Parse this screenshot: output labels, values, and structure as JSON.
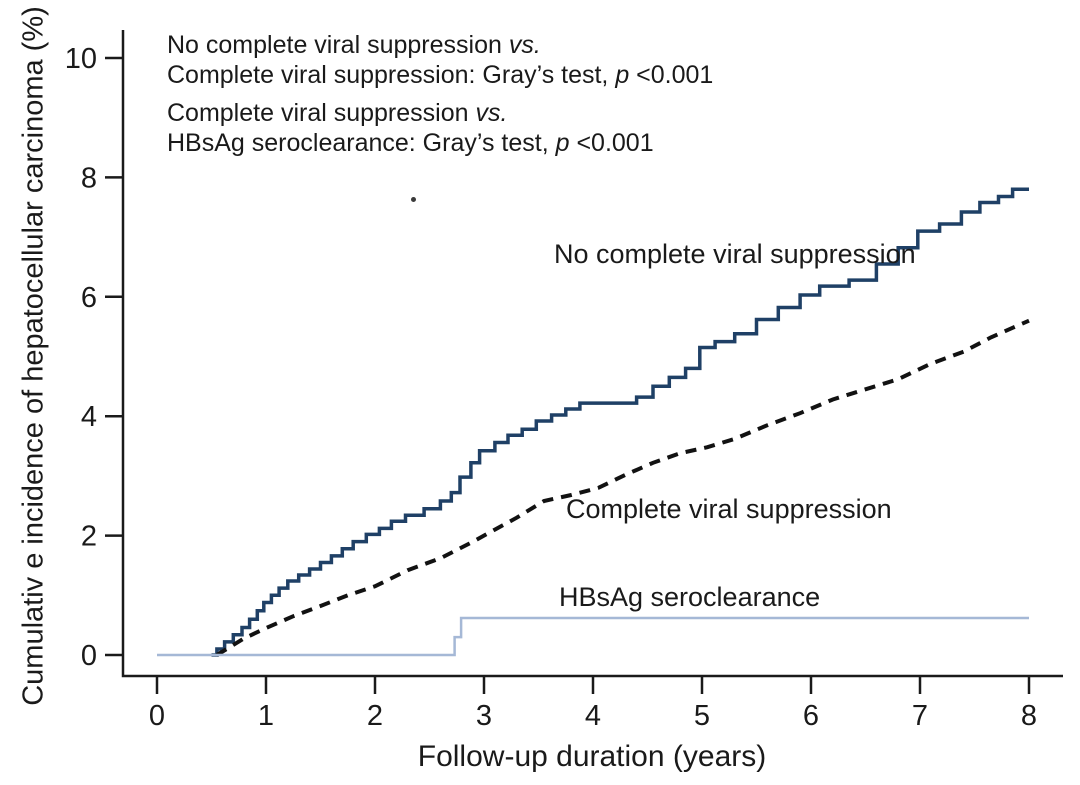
{
  "chart_data": {
    "type": "line",
    "subtype": "cumulative-incidence-step-curves",
    "title": "",
    "xlabel": "Follow-up duration (years)",
    "ylabel": "Cumulativ e incidence of hepatocellular carcinoma (%)",
    "xlim": [
      0,
      8
    ],
    "ylim": [
      0,
      10
    ],
    "xticks": [
      0,
      1,
      2,
      3,
      4,
      5,
      6,
      7,
      8
    ],
    "yticks": [
      0,
      2,
      4,
      6,
      8,
      10
    ],
    "grid": false,
    "legend_position": "inline-curve-labels",
    "axis_color": "#1a1a1a",
    "series": [
      {
        "name": "No complete viral suppression",
        "style": "solid-step",
        "color": "#1f4066",
        "width": 3.5,
        "points": [
          [
            0.5,
            0.0
          ],
          [
            0.55,
            0.1
          ],
          [
            0.62,
            0.22
          ],
          [
            0.7,
            0.34
          ],
          [
            0.78,
            0.46
          ],
          [
            0.85,
            0.6
          ],
          [
            0.92,
            0.74
          ],
          [
            0.98,
            0.88
          ],
          [
            1.05,
            1.0
          ],
          [
            1.12,
            1.12
          ],
          [
            1.2,
            1.24
          ],
          [
            1.3,
            1.34
          ],
          [
            1.4,
            1.44
          ],
          [
            1.5,
            1.55
          ],
          [
            1.6,
            1.66
          ],
          [
            1.7,
            1.78
          ],
          [
            1.8,
            1.9
          ],
          [
            1.92,
            2.02
          ],
          [
            2.04,
            2.12
          ],
          [
            2.15,
            2.24
          ],
          [
            2.28,
            2.34
          ],
          [
            2.45,
            2.45
          ],
          [
            2.6,
            2.58
          ],
          [
            2.7,
            2.72
          ],
          [
            2.78,
            2.98
          ],
          [
            2.88,
            3.22
          ],
          [
            2.96,
            3.42
          ],
          [
            3.1,
            3.56
          ],
          [
            3.22,
            3.68
          ],
          [
            3.35,
            3.78
          ],
          [
            3.48,
            3.92
          ],
          [
            3.62,
            4.02
          ],
          [
            3.75,
            4.12
          ],
          [
            3.88,
            4.22
          ],
          [
            4.4,
            4.32
          ],
          [
            4.55,
            4.5
          ],
          [
            4.7,
            4.65
          ],
          [
            4.85,
            4.8
          ],
          [
            4.98,
            5.15
          ],
          [
            5.12,
            5.25
          ],
          [
            5.3,
            5.38
          ],
          [
            5.5,
            5.62
          ],
          [
            5.7,
            5.82
          ],
          [
            5.9,
            6.03
          ],
          [
            6.08,
            6.18
          ],
          [
            6.35,
            6.28
          ],
          [
            6.6,
            6.55
          ],
          [
            6.8,
            6.82
          ],
          [
            6.98,
            7.1
          ],
          [
            7.18,
            7.22
          ],
          [
            7.38,
            7.42
          ],
          [
            7.55,
            7.58
          ],
          [
            7.72,
            7.68
          ],
          [
            7.85,
            7.8
          ],
          [
            8.0,
            7.8
          ]
        ]
      },
      {
        "name": "Complete viral suppression",
        "style": "dashed",
        "color": "#121212",
        "width": 4,
        "points": [
          [
            0.55,
            0.0
          ],
          [
            0.8,
            0.28
          ],
          [
            1.0,
            0.45
          ],
          [
            1.25,
            0.65
          ],
          [
            1.5,
            0.82
          ],
          [
            1.75,
            1.0
          ],
          [
            2.0,
            1.15
          ],
          [
            2.3,
            1.42
          ],
          [
            2.6,
            1.62
          ],
          [
            2.9,
            1.9
          ],
          [
            3.1,
            2.1
          ],
          [
            3.3,
            2.3
          ],
          [
            3.55,
            2.58
          ],
          [
            3.8,
            2.68
          ],
          [
            4.05,
            2.8
          ],
          [
            4.3,
            3.02
          ],
          [
            4.55,
            3.22
          ],
          [
            4.8,
            3.38
          ],
          [
            5.05,
            3.48
          ],
          [
            5.3,
            3.62
          ],
          [
            5.6,
            3.85
          ],
          [
            5.9,
            4.05
          ],
          [
            6.2,
            4.28
          ],
          [
            6.5,
            4.45
          ],
          [
            6.8,
            4.62
          ],
          [
            7.1,
            4.88
          ],
          [
            7.4,
            5.08
          ],
          [
            7.65,
            5.32
          ],
          [
            7.85,
            5.48
          ],
          [
            8.0,
            5.6
          ]
        ]
      },
      {
        "name": "HBsAg seroclearance",
        "style": "solid-step",
        "color": "#a5b8d6",
        "width": 2.5,
        "points": [
          [
            0.0,
            0.0
          ],
          [
            2.73,
            0.3
          ],
          [
            2.79,
            0.62
          ],
          [
            8.0,
            0.62
          ]
        ]
      }
    ],
    "annotations": [
      {
        "line1_text": "No complete viral suppression ",
        "line1_italic": "vs.",
        "line2_text": "Complete viral suppression: Gray’s test, ",
        "line2_italic": "p",
        "line2_suffix": " <0.001"
      },
      {
        "line1_text": "Complete viral suppression ",
        "line1_italic": "vs.",
        "line2_text": "HBsAg seroclearance: Gray’s test, ",
        "line2_italic": "p",
        "line2_suffix": " <0.001"
      }
    ]
  }
}
